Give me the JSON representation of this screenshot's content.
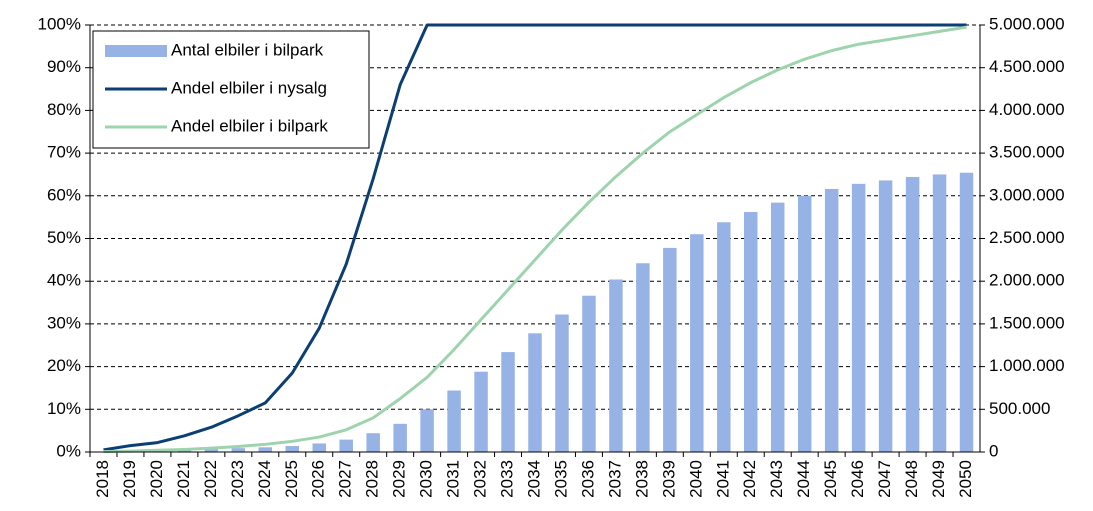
{
  "chart_data": {
    "type": "bar_line",
    "categories": [
      "2018",
      "2019",
      "2020",
      "2021",
      "2022",
      "2023",
      "2024",
      "2025",
      "2026",
      "2027",
      "2028",
      "2029",
      "2030",
      "2031",
      "2032",
      "2033",
      "2034",
      "2035",
      "2036",
      "2037",
      "2038",
      "2039",
      "2040",
      "2041",
      "2042",
      "2043",
      "2044",
      "2045",
      "2046",
      "2047",
      "2048",
      "2049",
      "2050"
    ],
    "series": [
      {
        "name": "Antal elbiler i bilpark",
        "type": "bar",
        "axis": "y2",
        "color": "#97b3e6",
        "values": [
          5000,
          10000,
          15000,
          25000,
          35000,
          45000,
          55000,
          70000,
          100000,
          145000,
          220000,
          330000,
          500000,
          720000,
          940000,
          1170000,
          1390000,
          1610000,
          1830000,
          2020000,
          2210000,
          2390000,
          2550000,
          2690000,
          2810000,
          2920000,
          3000000,
          3080000,
          3140000,
          3180000,
          3220000,
          3250000,
          3270000
        ]
      },
      {
        "name": "Andel elbiler i nysalg",
        "type": "line",
        "axis": "y",
        "color": "#0b3f73",
        "values": [
          0.5,
          1.5,
          2.2,
          3.8,
          5.8,
          8.5,
          11.5,
          18.5,
          29,
          44,
          64,
          86,
          100,
          100,
          100,
          100,
          100,
          100,
          100,
          100,
          100,
          100,
          100,
          100,
          100,
          100,
          100,
          100,
          100,
          100,
          100,
          100,
          100
        ]
      },
      {
        "name": "Andel elbiler i bilpark",
        "type": "line",
        "axis": "y",
        "color": "#9dd3ad",
        "values": [
          0.1,
          0.2,
          0.4,
          0.6,
          0.9,
          1.3,
          1.8,
          2.5,
          3.5,
          5.2,
          8,
          12.5,
          17.5,
          24,
          31,
          38,
          45,
          52,
          58.5,
          64.5,
          70,
          75,
          79,
          83,
          86.5,
          89.5,
          92,
          94,
          95.5,
          96.5,
          97.5,
          98.5,
          99.5
        ]
      }
    ],
    "ylim": [
      0,
      100
    ],
    "yticks": [
      {
        "value": 0,
        "label": "0%"
      },
      {
        "value": 10,
        "label": "10%"
      },
      {
        "value": 20,
        "label": "20%"
      },
      {
        "value": 30,
        "label": "30%"
      },
      {
        "value": 40,
        "label": "40%"
      },
      {
        "value": 50,
        "label": "50%"
      },
      {
        "value": 60,
        "label": "60%"
      },
      {
        "value": 70,
        "label": "70%"
      },
      {
        "value": 80,
        "label": "80%"
      },
      {
        "value": 90,
        "label": "90%"
      },
      {
        "value": 100,
        "label": "100%"
      }
    ],
    "y2lim": [
      0,
      5000000
    ],
    "y2ticks": [
      0,
      {
        "value": 500000,
        "label": "500.000"
      },
      {
        "value": 1000000,
        "label": "1.000.000"
      },
      {
        "value": 1500000,
        "label": "1.500.000"
      },
      {
        "value": 2000000,
        "label": "2.000.000"
      },
      {
        "value": 2500000,
        "label": "2.500.000"
      },
      {
        "value": 3000000,
        "label": "3.000.000"
      },
      {
        "value": 3500000,
        "label": "3.500.000"
      },
      {
        "value": 4000000,
        "label": "4.000.000"
      },
      {
        "value": 4500000,
        "label": "4.500.000"
      },
      {
        "value": 5000000,
        "label": "5.000.000"
      }
    ],
    "grid": true,
    "legend": "upper left"
  }
}
